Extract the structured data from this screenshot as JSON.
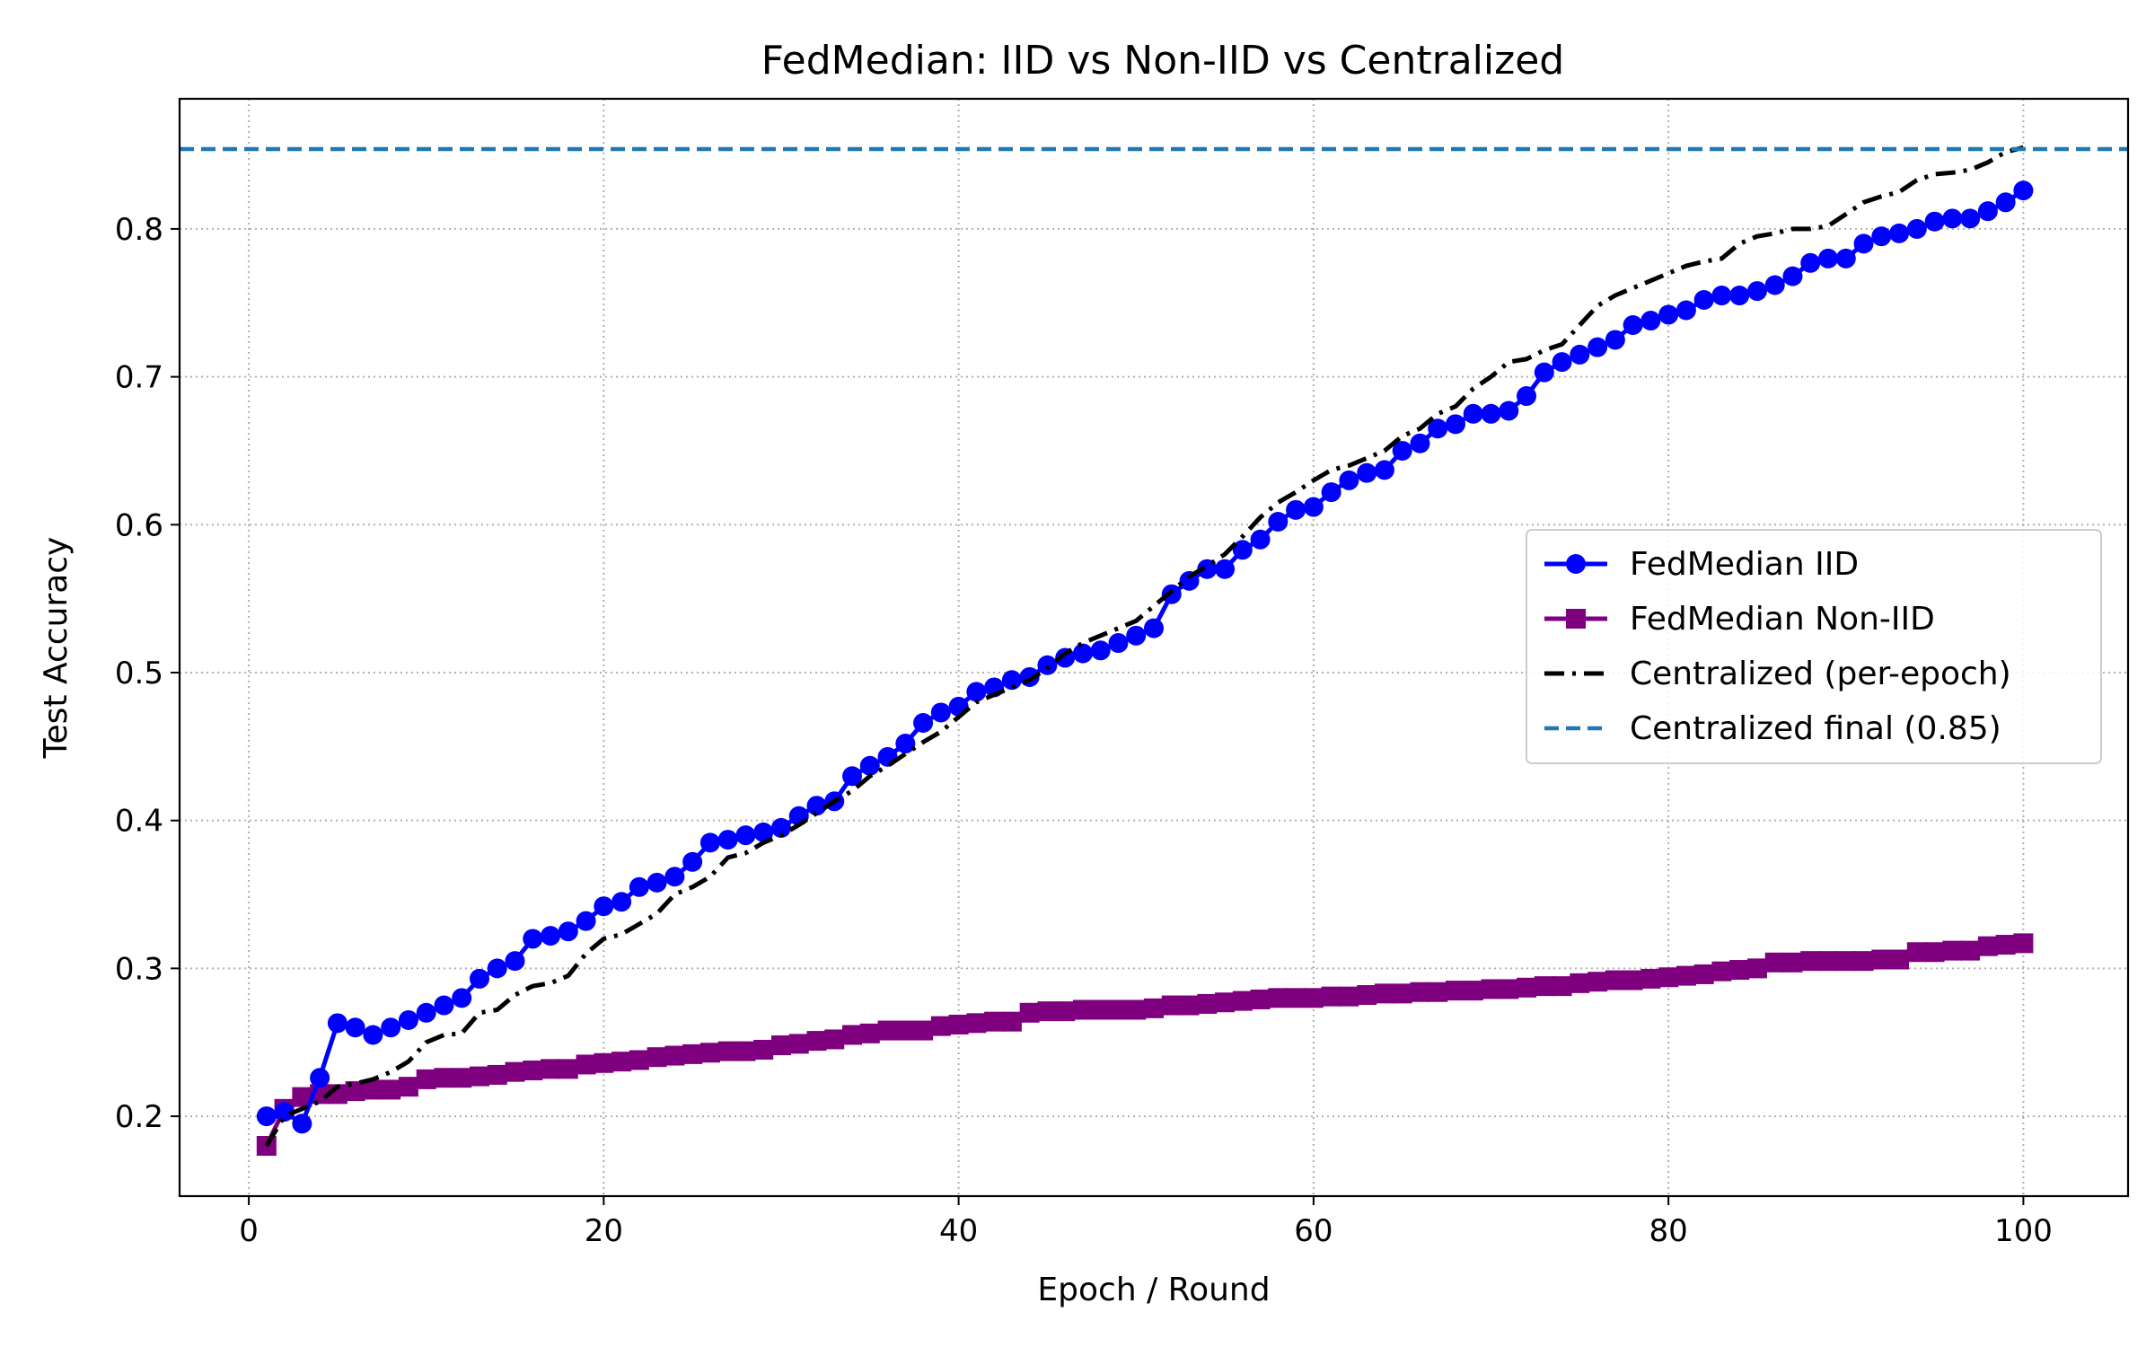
{
  "chart_data": {
    "type": "line",
    "title": "FedMedian: IID vs Non-IID vs Centralized",
    "xlabel": "Epoch / Round",
    "ylabel": "Test Accuracy",
    "xlim": [
      -3.9,
      105.9
    ],
    "ylim": [
      0.146,
      0.888
    ],
    "xticks": [
      0,
      20,
      40,
      60,
      80,
      100
    ],
    "yticks": [
      0.2,
      0.3,
      0.4,
      0.5,
      0.6,
      0.7,
      0.8
    ],
    "grid": true,
    "legend_position": "center-right",
    "series": [
      {
        "name": "FedMedian IID",
        "color": "#0000ff",
        "marker": "circle",
        "linestyle": "solid",
        "x_start": 1,
        "values": [
          0.2,
          0.203,
          0.195,
          0.226,
          0.263,
          0.26,
          0.255,
          0.26,
          0.265,
          0.27,
          0.275,
          0.28,
          0.293,
          0.3,
          0.305,
          0.32,
          0.322,
          0.325,
          0.332,
          0.342,
          0.345,
          0.355,
          0.358,
          0.362,
          0.372,
          0.385,
          0.387,
          0.39,
          0.392,
          0.395,
          0.403,
          0.41,
          0.413,
          0.43,
          0.437,
          0.443,
          0.452,
          0.466,
          0.473,
          0.477,
          0.487,
          0.49,
          0.495,
          0.497,
          0.505,
          0.51,
          0.513,
          0.515,
          0.52,
          0.525,
          0.53,
          0.553,
          0.562,
          0.57,
          0.57,
          0.583,
          0.59,
          0.602,
          0.61,
          0.612,
          0.622,
          0.63,
          0.635,
          0.637,
          0.65,
          0.655,
          0.665,
          0.668,
          0.675,
          0.675,
          0.677,
          0.687,
          0.703,
          0.71,
          0.715,
          0.72,
          0.725,
          0.735,
          0.738,
          0.742,
          0.745,
          0.752,
          0.755,
          0.755,
          0.758,
          0.762,
          0.768,
          0.777,
          0.78,
          0.78,
          0.79,
          0.795,
          0.797,
          0.8,
          0.805,
          0.807,
          0.807,
          0.812,
          0.818,
          0.826
        ]
      },
      {
        "name": "FedMedian Non-IID",
        "color": "#7f007f",
        "marker": "square",
        "linestyle": "solid",
        "x_start": 1,
        "values": [
          0.18,
          0.205,
          0.213,
          0.215,
          0.215,
          0.217,
          0.218,
          0.218,
          0.22,
          0.225,
          0.226,
          0.226,
          0.227,
          0.228,
          0.23,
          0.231,
          0.232,
          0.232,
          0.235,
          0.236,
          0.237,
          0.238,
          0.24,
          0.241,
          0.242,
          0.243,
          0.244,
          0.244,
          0.245,
          0.248,
          0.249,
          0.251,
          0.252,
          0.255,
          0.256,
          0.258,
          0.258,
          0.258,
          0.261,
          0.262,
          0.263,
          0.264,
          0.264,
          0.27,
          0.271,
          0.271,
          0.272,
          0.272,
          0.272,
          0.272,
          0.273,
          0.275,
          0.275,
          0.276,
          0.277,
          0.278,
          0.279,
          0.28,
          0.28,
          0.28,
          0.281,
          0.281,
          0.282,
          0.283,
          0.283,
          0.284,
          0.284,
          0.285,
          0.285,
          0.286,
          0.286,
          0.287,
          0.288,
          0.288,
          0.29,
          0.291,
          0.292,
          0.292,
          0.293,
          0.294,
          0.295,
          0.296,
          0.298,
          0.299,
          0.3,
          0.304,
          0.304,
          0.305,
          0.305,
          0.305,
          0.305,
          0.306,
          0.306,
          0.311,
          0.311,
          0.312,
          0.312,
          0.315,
          0.316,
          0.317
        ]
      },
      {
        "name": "Centralized (per-epoch)",
        "color": "#000000",
        "marker": "none",
        "linestyle": "dashdot",
        "x_start": 1,
        "values": [
          0.18,
          0.2,
          0.205,
          0.21,
          0.22,
          0.222,
          0.225,
          0.23,
          0.237,
          0.25,
          0.255,
          0.256,
          0.27,
          0.272,
          0.282,
          0.288,
          0.29,
          0.295,
          0.31,
          0.32,
          0.323,
          0.33,
          0.337,
          0.35,
          0.355,
          0.362,
          0.375,
          0.378,
          0.385,
          0.39,
          0.397,
          0.405,
          0.413,
          0.42,
          0.43,
          0.437,
          0.445,
          0.453,
          0.46,
          0.47,
          0.48,
          0.485,
          0.49,
          0.495,
          0.503,
          0.513,
          0.52,
          0.525,
          0.53,
          0.535,
          0.545,
          0.555,
          0.565,
          0.572,
          0.58,
          0.592,
          0.605,
          0.615,
          0.622,
          0.63,
          0.637,
          0.64,
          0.645,
          0.65,
          0.66,
          0.665,
          0.675,
          0.68,
          0.692,
          0.7,
          0.71,
          0.712,
          0.718,
          0.722,
          0.735,
          0.748,
          0.755,
          0.76,
          0.765,
          0.77,
          0.775,
          0.778,
          0.78,
          0.79,
          0.795,
          0.797,
          0.8,
          0.8,
          0.802,
          0.81,
          0.818,
          0.822,
          0.825,
          0.833,
          0.837,
          0.838,
          0.84,
          0.845,
          0.852,
          0.855
        ]
      },
      {
        "name": "Centralized final (0.85)",
        "color": "#1f77b4",
        "marker": "none",
        "linestyle": "dashed",
        "constant": 0.854
      }
    ]
  }
}
